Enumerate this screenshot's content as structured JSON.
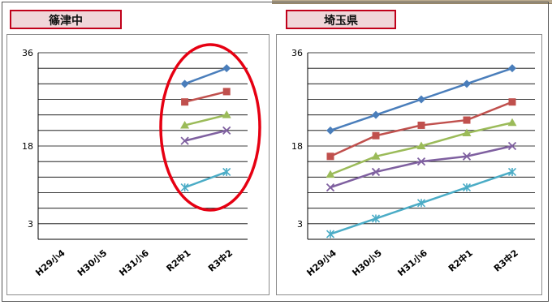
{
  "charts": [
    {
      "title": "篠津中"
    },
    {
      "title": "埼玉県"
    }
  ],
  "chart_data": [
    {
      "type": "line",
      "title": "篠津中",
      "categories": [
        "H29小4",
        "H30小5",
        "H31小6",
        "R2中1",
        "R3中2"
      ],
      "ylim": [
        0,
        36
      ],
      "ytick_labels": [
        "3",
        "18",
        "36"
      ],
      "grid": true,
      "series": [
        {
          "values": [
            null,
            null,
            null,
            30,
            33
          ],
          "color": "#4a7ebb",
          "marker": "diamond"
        },
        {
          "values": [
            null,
            null,
            null,
            26.5,
            28.5
          ],
          "color": "#c0504d",
          "marker": "square"
        },
        {
          "values": [
            null,
            null,
            null,
            22,
            24
          ],
          "color": "#9bbb59",
          "marker": "triangle"
        },
        {
          "values": [
            null,
            null,
            null,
            19,
            21
          ],
          "color": "#7f60a0",
          "marker": "x"
        },
        {
          "values": [
            null,
            null,
            null,
            10,
            13
          ],
          "color": "#4bacc6",
          "marker": "asterisk"
        }
      ]
    },
    {
      "type": "line",
      "title": "埼玉県",
      "categories": [
        "H29小4",
        "H30小5",
        "H31小6",
        "R2中1",
        "R3中2"
      ],
      "ylim": [
        0,
        36
      ],
      "ytick_labels": [
        "3",
        "18",
        "36"
      ],
      "grid": true,
      "series": [
        {
          "values": [
            21,
            24,
            27,
            30,
            33
          ],
          "color": "#4a7ebb",
          "marker": "diamond"
        },
        {
          "values": [
            16,
            20,
            22,
            23,
            26.5
          ],
          "color": "#c0504d",
          "marker": "square"
        },
        {
          "values": [
            12.5,
            16,
            18,
            20.5,
            22.5
          ],
          "color": "#9bbb59",
          "marker": "triangle"
        },
        {
          "values": [
            10,
            13,
            15,
            16,
            18
          ],
          "color": "#7f60a0",
          "marker": "x"
        },
        {
          "values": [
            1,
            4,
            7,
            10,
            13
          ],
          "color": "#4bacc6",
          "marker": "asterisk"
        }
      ]
    }
  ]
}
